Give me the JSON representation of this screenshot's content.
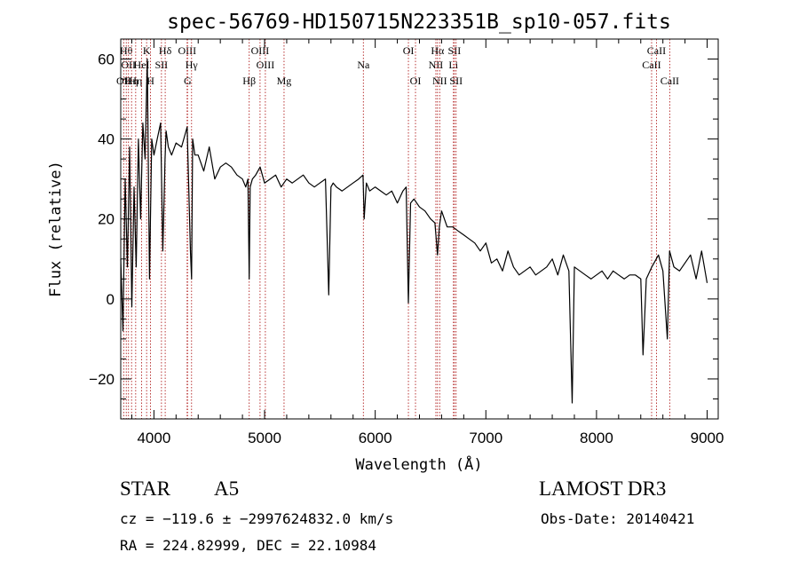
{
  "chart_data": {
    "type": "line",
    "title": "spec-56769-HD150715N223351B_sp10-057.fits",
    "xlabel": "Wavelength (Å)",
    "ylabel": "Flux (relative)",
    "xlim": [
      3700,
      9100
    ],
    "ylim": [
      -30,
      65
    ],
    "xticks": [
      4000,
      5000,
      6000,
      7000,
      8000,
      9000
    ],
    "yticks": [
      -20,
      0,
      20,
      40,
      60
    ],
    "series": [
      {
        "name": "flux",
        "x": [
          3700,
          3720,
          3740,
          3760,
          3780,
          3800,
          3820,
          3840,
          3860,
          3880,
          3900,
          3920,
          3940,
          3960,
          3980,
          4000,
          4030,
          4060,
          4080,
          4100,
          4110,
          4130,
          4160,
          4200,
          4250,
          4300,
          4330,
          4340,
          4350,
          4370,
          4400,
          4450,
          4500,
          4550,
          4600,
          4650,
          4700,
          4750,
          4800,
          4830,
          4850,
          4861,
          4870,
          4890,
          4920,
          4960,
          5000,
          5050,
          5100,
          5150,
          5200,
          5250,
          5300,
          5350,
          5400,
          5450,
          5500,
          5550,
          5580,
          5600,
          5620,
          5650,
          5700,
          5750,
          5800,
          5850,
          5890,
          5900,
          5920,
          5950,
          6000,
          6050,
          6100,
          6150,
          6200,
          6250,
          6280,
          6300,
          6320,
          6350,
          6400,
          6450,
          6500,
          6540,
          6563,
          6580,
          6600,
          6650,
          6700,
          6750,
          6800,
          6850,
          6900,
          6950,
          7000,
          7050,
          7100,
          7150,
          7200,
          7250,
          7300,
          7350,
          7400,
          7450,
          7500,
          7550,
          7600,
          7650,
          7700,
          7750,
          7780,
          7800,
          7850,
          7900,
          7950,
          8000,
          8050,
          8100,
          8150,
          8200,
          8250,
          8300,
          8350,
          8400,
          8420,
          8450,
          8500,
          8540,
          8560,
          8600,
          8640,
          8660,
          8700,
          8750,
          8800,
          8850,
          8900,
          8950,
          9000
        ],
        "y": [
          10,
          -8,
          30,
          8,
          38,
          -2,
          28,
          8,
          40,
          20,
          44,
          35,
          60,
          5,
          40,
          36,
          40,
          44,
          12,
          35,
          42,
          38,
          36,
          39,
          38,
          43,
          12,
          5,
          40,
          36,
          36,
          32,
          38,
          30,
          33,
          34,
          33,
          31,
          30,
          28,
          30,
          5,
          28,
          30,
          31,
          33,
          29,
          30,
          31,
          28,
          30,
          29,
          30,
          31,
          29,
          28,
          29,
          30,
          1,
          28,
          29,
          28,
          27,
          28,
          29,
          30,
          31,
          20,
          29,
          27,
          28,
          27,
          26,
          27,
          24,
          27,
          28,
          -1,
          24,
          25,
          23,
          22,
          20,
          19,
          11,
          18,
          22,
          18,
          18,
          17,
          16,
          15,
          14,
          12,
          14,
          9,
          10,
          7,
          12,
          8,
          6,
          7,
          8,
          6,
          7,
          8,
          10,
          6,
          11,
          7,
          -26,
          8,
          7,
          6,
          5,
          6,
          7,
          5,
          7,
          6,
          5,
          6,
          6,
          5,
          -14,
          5,
          8,
          10,
          11,
          7,
          -10,
          12,
          8,
          7,
          9,
          11,
          5,
          12,
          4
        ]
      }
    ],
    "lines": [
      {
        "w": 3727,
        "label": "OII",
        "row": 2
      },
      {
        "w": 3750,
        "label": "Hθ",
        "row": 0
      },
      {
        "w": 3770,
        "label": "OII",
        "row": 1
      },
      {
        "w": 3798,
        "label": "Hη",
        "row": 2
      },
      {
        "w": 3835,
        "label": "Hη",
        "row": 2
      },
      {
        "w": 3889,
        "label": "HeI",
        "row": 1
      },
      {
        "w": 3934,
        "label": "K",
        "row": 0
      },
      {
        "w": 3969,
        "label": "H",
        "row": 2
      },
      {
        "w": 4068,
        "label": "SII",
        "row": 1
      },
      {
        "w": 4102,
        "label": "Hδ",
        "row": 0
      },
      {
        "w": 4300,
        "label": "OIII",
        "row": 0
      },
      {
        "w": 4304,
        "label": "G",
        "row": 2
      },
      {
        "w": 4340,
        "label": "Hγ",
        "row": 1
      },
      {
        "w": 4861,
        "label": "Hβ",
        "row": 2
      },
      {
        "w": 4959,
        "label": "OIII",
        "row": 0
      },
      {
        "w": 5007,
        "label": "OIII",
        "row": 1
      },
      {
        "w": 5176,
        "label": "Mg",
        "row": 2
      },
      {
        "w": 5893,
        "label": "Na",
        "row": 1
      },
      {
        "w": 6300,
        "label": "OI",
        "row": 0
      },
      {
        "w": 6364,
        "label": "OI",
        "row": 2
      },
      {
        "w": 6548,
        "label": "NII",
        "row": 1
      },
      {
        "w": 6563,
        "label": "Hα",
        "row": 0
      },
      {
        "w": 6583,
        "label": "NII",
        "row": 2
      },
      {
        "w": 6707,
        "label": "Li",
        "row": 1
      },
      {
        "w": 6716,
        "label": "SII",
        "row": 0
      },
      {
        "w": 6731,
        "label": "SII",
        "row": 2
      },
      {
        "w": 8498,
        "label": "CaII",
        "row": 1
      },
      {
        "w": 8542,
        "label": "CaII",
        "row": 0
      },
      {
        "w": 8662,
        "label": "CaII",
        "row": 2
      }
    ]
  },
  "info": {
    "object_class": "STAR",
    "subclass": "A5",
    "survey": "LAMOST DR3",
    "redshift": "cz = −119.6 ± −2997624832.0 km/s",
    "obs_date": "Obs-Date: 20140421",
    "coords": "RA = 224.82999, DEC =  22.10984"
  },
  "colors": {
    "line": "#000000",
    "marker": "#b22222",
    "axis": "#000000"
  }
}
